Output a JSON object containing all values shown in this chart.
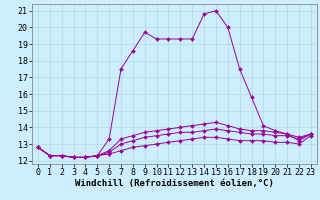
{
  "hours": [
    0,
    1,
    2,
    3,
    4,
    5,
    6,
    7,
    8,
    9,
    10,
    11,
    12,
    13,
    14,
    15,
    16,
    17,
    18,
    19,
    20,
    21,
    22,
    23
  ],
  "line1": [
    12.8,
    12.3,
    12.3,
    12.2,
    12.2,
    12.3,
    13.3,
    17.5,
    18.6,
    19.7,
    19.3,
    19.3,
    19.3,
    19.3,
    20.8,
    21.0,
    20.0,
    17.5,
    15.8,
    14.1,
    13.8,
    13.6,
    13.2,
    13.6
  ],
  "line2": [
    12.8,
    12.3,
    12.3,
    12.2,
    12.2,
    12.3,
    12.6,
    13.3,
    13.5,
    13.7,
    13.8,
    13.9,
    14.0,
    14.1,
    14.2,
    14.3,
    14.1,
    13.9,
    13.8,
    13.8,
    13.7,
    13.6,
    13.4,
    13.6
  ],
  "line3": [
    12.8,
    12.3,
    12.3,
    12.2,
    12.2,
    12.3,
    12.5,
    13.0,
    13.2,
    13.4,
    13.5,
    13.6,
    13.7,
    13.7,
    13.8,
    13.9,
    13.8,
    13.7,
    13.6,
    13.6,
    13.5,
    13.5,
    13.3,
    13.6
  ],
  "line4": [
    12.8,
    12.3,
    12.3,
    12.2,
    12.2,
    12.3,
    12.4,
    12.6,
    12.8,
    12.9,
    13.0,
    13.1,
    13.2,
    13.3,
    13.4,
    13.4,
    13.3,
    13.2,
    13.2,
    13.2,
    13.1,
    13.1,
    13.0,
    13.5
  ],
  "line_color": "#990099",
  "bg_color": "#cceeff",
  "grid_color": "#aadddd",
  "xlabel": "Windchill (Refroidissement éolien,°C)",
  "ylim": [
    11.8,
    21.4
  ],
  "xlim": [
    -0.5,
    23.5
  ],
  "yticks": [
    12,
    13,
    14,
    15,
    16,
    17,
    18,
    19,
    20,
    21
  ],
  "xticks": [
    0,
    1,
    2,
    3,
    4,
    5,
    6,
    7,
    8,
    9,
    10,
    11,
    12,
    13,
    14,
    15,
    16,
    17,
    18,
    19,
    20,
    21,
    22,
    23
  ],
  "xlabel_fontsize": 6.5,
  "tick_fontsize": 6,
  "markersize": 2.0,
  "linewidth": 0.7
}
